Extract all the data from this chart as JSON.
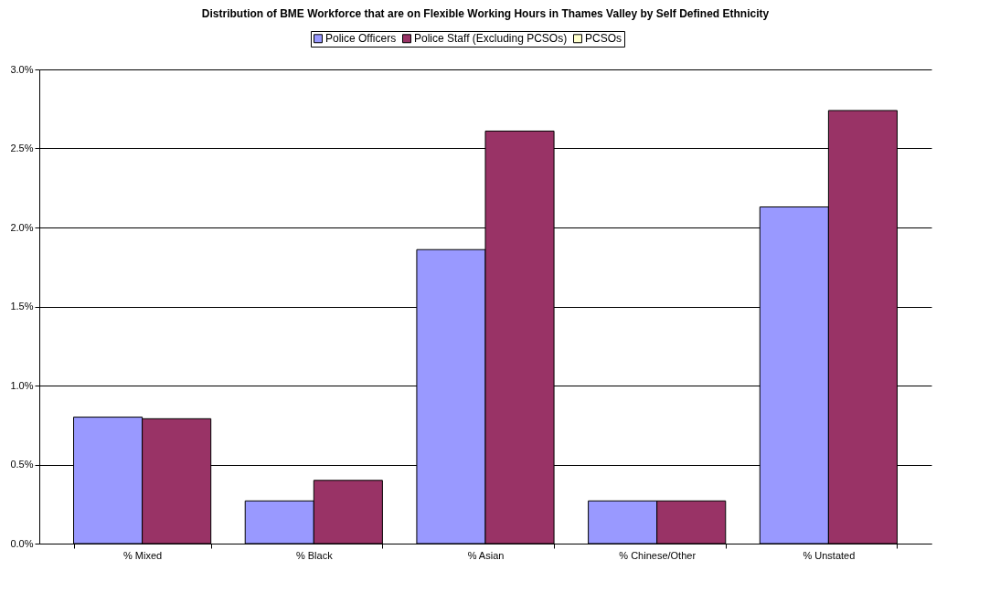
{
  "chart_data": {
    "type": "bar",
    "title": "Distribution of BME Workforce that are on Flexible Working Hours in Thames Valley by Self Defined Ethnicity",
    "categories": [
      "% Mixed",
      "% Black",
      "% Asian",
      "% Chinese/Other",
      "% Unstated"
    ],
    "series": [
      {
        "name": "Police Officers",
        "color": "#9999ff",
        "values": [
          0.8,
          0.27,
          1.86,
          0.27,
          2.13
        ]
      },
      {
        "name": "Police Staff (Excluding PCSOs)",
        "color": "#993366",
        "values": [
          0.79,
          0.4,
          2.61,
          0.27,
          2.74
        ]
      },
      {
        "name": "PCSOs",
        "color": "#ffffcc",
        "values": [
          null,
          null,
          null,
          null,
          null
        ]
      }
    ],
    "ylim": [
      0,
      3
    ],
    "yticks": [
      {
        "value": 0,
        "label": "0.0%"
      },
      {
        "value": 0.5,
        "label": "0.5%"
      },
      {
        "value": 1,
        "label": "1.0%"
      },
      {
        "value": 1.5,
        "label": "1.5%"
      },
      {
        "value": 2,
        "label": "2.0%"
      },
      {
        "value": 2.5,
        "label": "2.5%"
      },
      {
        "value": 3,
        "label": "3.0%"
      }
    ],
    "grid": "y",
    "legend": "top"
  }
}
